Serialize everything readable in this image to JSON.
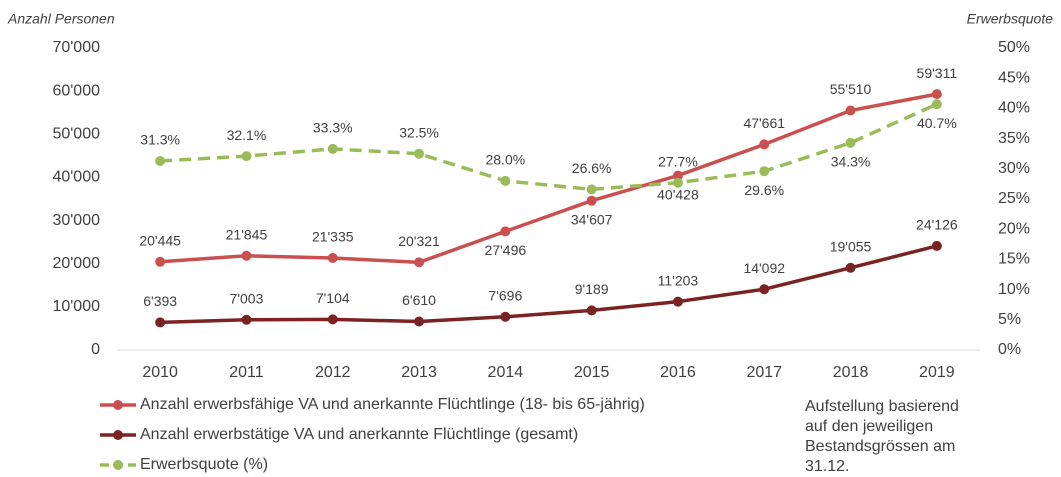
{
  "chart_data": {
    "type": "line",
    "ylabel": "Anzahl Personen",
    "y2label": "Erwerbsquote",
    "categories": [
      "2010",
      "2011",
      "2012",
      "2013",
      "2014",
      "2015",
      "2016",
      "2017",
      "2018",
      "2019"
    ],
    "series": [
      {
        "name": "Anzahl erwerbsfähige VA und anerkannte Flüchtlinge (18- bis 65-jährig)",
        "color": "#c9504f",
        "dashed": false,
        "values": [
          20445,
          21845,
          21335,
          20321,
          27496,
          34607,
          40428,
          47661,
          55510,
          59311
        ],
        "value_labels": [
          "20'445",
          "21'845",
          "21'335",
          "20'321",
          "27'496",
          "34'607",
          "40'428",
          "47'661",
          "55'510",
          "59'311"
        ]
      },
      {
        "name": "Anzahl erwerbstätige VA und anerkannte Flüchtlinge (gesamt)",
        "color": "#7b2222",
        "dashed": false,
        "values": [
          6393,
          7003,
          7104,
          6610,
          7696,
          9189,
          11203,
          14092,
          19055,
          24126
        ],
        "value_labels": [
          "6'393",
          "7'003",
          "7'104",
          "6'610",
          "7'696",
          "9'189",
          "11'203",
          "14'092",
          "19'055",
          "24'126"
        ]
      },
      {
        "name": "Erwerbsquote (%)",
        "color": "#9bbb59",
        "dashed": true,
        "axis": "y2",
        "values": [
          31.3,
          32.1,
          33.3,
          32.5,
          28.0,
          26.6,
          27.7,
          29.6,
          34.3,
          40.7
        ],
        "value_labels": [
          "31.3%",
          "32.1%",
          "33.3%",
          "32.5%",
          "28.0%",
          "26.6%",
          "27.7%",
          "29.6%",
          "34.3%",
          "40.7%"
        ]
      }
    ],
    "ylim": [
      0,
      70000
    ],
    "yticks": [
      0,
      {
        "value": 10000,
        "label": "10'000"
      },
      {
        "value": 20000,
        "label": "20'000"
      },
      {
        "value": 30000,
        "label": "30'000"
      },
      {
        "value": 40000,
        "label": "40'000"
      },
      {
        "value": 50000,
        "label": "50'000"
      },
      {
        "value": 60000,
        "label": "60'000"
      },
      {
        "value": 70000,
        "label": "70'000"
      }
    ],
    "y2lim": [
      0,
      50
    ],
    "y2ticks": [
      {
        "value": 0,
        "label": "0%"
      },
      {
        "value": 5,
        "label": "5%"
      },
      {
        "value": 10,
        "label": "10%"
      },
      {
        "value": 15,
        "label": "15%"
      },
      {
        "value": 20,
        "label": "20%"
      },
      {
        "value": 25,
        "label": "25%"
      },
      {
        "value": 30,
        "label": "30%"
      },
      {
        "value": 35,
        "label": "35%"
      },
      {
        "value": 40,
        "label": "40%"
      },
      {
        "value": 45,
        "label": "45%"
      },
      {
        "value": 50,
        "label": "50%"
      }
    ],
    "note": [
      "Aufstellung basierend",
      "auf den jeweiligen",
      "Bestandsgrössen am",
      "31.12."
    ]
  }
}
